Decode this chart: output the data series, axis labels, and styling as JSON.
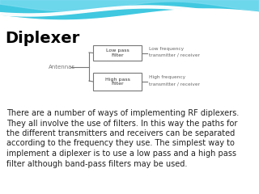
{
  "title": "Diplexer",
  "title_fontsize": 14,
  "title_fontweight": "bold",
  "title_color": "#000000",
  "bg_color": "#ffffff",
  "antenna_label": "Antennas",
  "box1_label": "Low pass\nFilter",
  "box2_label": "High pass\nFilter",
  "label1_line1": "Low frequency",
  "label1_line2": "transmitter / receiver",
  "label2_line1": "High frequency",
  "label2_line2": "transmitter / receiver",
  "body_text": "There are a number of ways of implementing RF diplexers.\nThey all involve the use of filters. In this way the paths for\nthe different transmitters and receivers can be separated\naccording to the frequency they use. The simplest way to\nimplement a diplexer is to use a low pass and a high pass\nfilter although band-pass filters may be used.",
  "body_fontsize": 7.0,
  "body_color": "#222222",
  "box_color": "#777777",
  "line_color": "#777777",
  "wave_color1": "#40c8e0",
  "wave_color2": "#80ddf0",
  "wave_white": "#ffffff"
}
